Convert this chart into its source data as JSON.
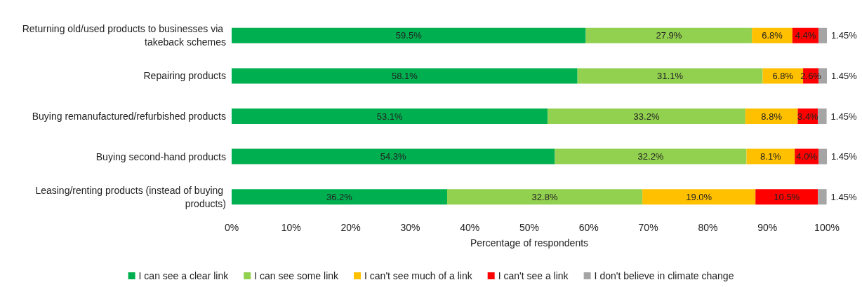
{
  "chart_data": {
    "type": "bar",
    "orientation": "horizontal",
    "stacked": true,
    "legend": "bottom",
    "grid": false,
    "xlabel": "Percentage of respondents",
    "categories": [
      "Returning old/used products to businesses via takeback schemes",
      "Repairing products",
      "Buying remanufactured/refurbished products",
      "Buying second-hand products",
      "Leasing/renting products (instead of buying products)"
    ],
    "xlim": [
      0,
      100
    ],
    "xticks": [
      {
        "value": 0,
        "label": "0%"
      },
      {
        "value": 10,
        "label": "10%"
      },
      {
        "value": 20,
        "label": "20%"
      },
      {
        "value": 30,
        "label": "30%"
      },
      {
        "value": 40,
        "label": "40%"
      },
      {
        "value": 50,
        "label": "50%"
      },
      {
        "value": 60,
        "label": "60%"
      },
      {
        "value": 70,
        "label": "70%"
      },
      {
        "value": 80,
        "label": "80%"
      },
      {
        "value": 90,
        "label": "90%"
      },
      {
        "value": 100,
        "label": "100%"
      }
    ],
    "series": [
      {
        "name": "I can see a clear link",
        "color": "#00b050",
        "values": [
          59.5,
          58.1,
          53.1,
          54.3,
          36.2
        ],
        "value_labels": [
          "59.5%",
          "58.1%",
          "53.1%",
          "54.3%",
          "36.2%"
        ]
      },
      {
        "name": "I can see some link",
        "color": "#92d050",
        "values": [
          27.9,
          31.1,
          33.2,
          32.2,
          32.8
        ],
        "value_labels": [
          "27.9%",
          "31.1%",
          "33.2%",
          "32.2%",
          "32.8%"
        ]
      },
      {
        "name": "I can't see much of a link",
        "color": "#ffc000",
        "values": [
          6.8,
          6.8,
          8.8,
          8.1,
          19.0
        ],
        "value_labels": [
          "6.8%",
          "6.8%",
          "8.8%",
          "8.1%",
          "19.0%"
        ]
      },
      {
        "name": "I can't see a link",
        "color": "#ff0000",
        "values": [
          4.4,
          2.6,
          3.4,
          4.0,
          10.5
        ],
        "value_labels": [
          "4.4%",
          "2.6%",
          "3.4%",
          "4.0%",
          "10.5%"
        ]
      },
      {
        "name": "I don't believe in climate change",
        "color": "#a5a5a5",
        "values": [
          1.45,
          1.45,
          1.45,
          1.45,
          1.45
        ],
        "value_labels": [
          "1.45%",
          "1.45%",
          "1.45%",
          "1.45%",
          "1.45%"
        ]
      }
    ]
  }
}
